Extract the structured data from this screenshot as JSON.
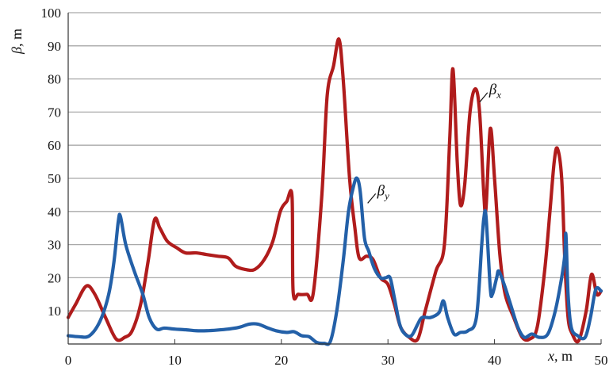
{
  "chart_data": {
    "type": "line",
    "title": "",
    "xlabel": {
      "symbol": "x",
      "unit": ", m"
    },
    "ylabel": {
      "symbol": "β",
      "unit": ", m"
    },
    "xlim": [
      0,
      50
    ],
    "ylim": [
      0,
      100
    ],
    "x_ticks": [
      0,
      10,
      20,
      30,
      40,
      50
    ],
    "y_ticks": [
      10,
      20,
      30,
      40,
      50,
      60,
      70,
      80,
      90,
      100
    ],
    "grid": "horizontal",
    "legend": "none",
    "series": [
      {
        "name": "βx",
        "label_main": "β",
        "label_sub": "x",
        "label_anchor": [
          38.6,
          73
        ],
        "color": "#b01c1c",
        "points": [
          [
            0,
            8
          ],
          [
            0.7,
            12
          ],
          [
            1.7,
            17.5
          ],
          [
            2.5,
            15
          ],
          [
            3.5,
            8
          ],
          [
            4.5,
            1.5
          ],
          [
            5.3,
            2
          ],
          [
            6,
            4
          ],
          [
            6.8,
            12
          ],
          [
            7.5,
            25
          ],
          [
            8.1,
            37.5
          ],
          [
            8.6,
            35
          ],
          [
            9.3,
            31
          ],
          [
            10.2,
            29
          ],
          [
            11,
            27.5
          ],
          [
            12,
            27.5
          ],
          [
            13,
            27
          ],
          [
            14,
            26.5
          ],
          [
            15,
            26
          ],
          [
            15.7,
            23.5
          ],
          [
            16.6,
            22.5
          ],
          [
            17.5,
            22.5
          ],
          [
            18.4,
            25.5
          ],
          [
            19.2,
            31
          ],
          [
            19.9,
            40
          ],
          [
            20.5,
            43
          ],
          [
            21,
            44.5
          ],
          [
            21.1,
            16
          ],
          [
            21.6,
            15
          ],
          [
            22.4,
            15
          ],
          [
            23,
            15.5
          ],
          [
            23.8,
            45
          ],
          [
            24.3,
            75
          ],
          [
            24.9,
            84
          ],
          [
            25.4,
            92
          ],
          [
            25.8,
            80
          ],
          [
            26.4,
            50
          ],
          [
            26.9,
            35
          ],
          [
            27.3,
            26
          ],
          [
            28,
            26.5
          ],
          [
            28.6,
            25.5
          ],
          [
            29.3,
            20
          ],
          [
            30,
            18
          ],
          [
            30.6,
            12
          ],
          [
            31.2,
            5
          ],
          [
            32,
            2
          ],
          [
            32.8,
            1.5
          ],
          [
            33.5,
            10
          ],
          [
            34.5,
            22
          ],
          [
            35.3,
            30
          ],
          [
            35.8,
            62
          ],
          [
            36.1,
            83
          ],
          [
            36.5,
            55
          ],
          [
            36.8,
            42
          ],
          [
            37.2,
            48
          ],
          [
            37.7,
            70
          ],
          [
            38.2,
            77
          ],
          [
            38.6,
            70
          ],
          [
            39,
            45
          ],
          [
            39.2,
            41
          ],
          [
            39.6,
            65
          ],
          [
            40,
            50
          ],
          [
            40.5,
            27
          ],
          [
            41,
            15
          ],
          [
            41.8,
            8
          ],
          [
            42.6,
            2
          ],
          [
            43.3,
            1.5
          ],
          [
            44,
            5
          ],
          [
            44.7,
            22
          ],
          [
            45.2,
            40
          ],
          [
            45.6,
            55
          ],
          [
            45.9,
            59
          ],
          [
            46.3,
            50
          ],
          [
            46.6,
            25
          ],
          [
            46.9,
            8
          ],
          [
            47.3,
            3
          ],
          [
            47.9,
            1
          ],
          [
            48.6,
            10
          ],
          [
            49.1,
            21
          ],
          [
            49.6,
            15
          ],
          [
            50,
            16
          ]
        ]
      },
      {
        "name": "βy",
        "label_main": "β",
        "label_sub": "y",
        "label_anchor": [
          28.1,
          42.5
        ],
        "color": "#2360a8",
        "points": [
          [
            0,
            2.5
          ],
          [
            1,
            2.2
          ],
          [
            2,
            2.5
          ],
          [
            3,
            7
          ],
          [
            3.8,
            15
          ],
          [
            4.3,
            25
          ],
          [
            4.7,
            37
          ],
          [
            4.9,
            38.5
          ],
          [
            5.4,
            30
          ],
          [
            6.2,
            22
          ],
          [
            7,
            15
          ],
          [
            7.6,
            8
          ],
          [
            8.3,
            4.5
          ],
          [
            9,
            4.8
          ],
          [
            10,
            4.5
          ],
          [
            11,
            4.3
          ],
          [
            12,
            4
          ],
          [
            13,
            4
          ],
          [
            14,
            4.2
          ],
          [
            15,
            4.5
          ],
          [
            16,
            5
          ],
          [
            17,
            6
          ],
          [
            17.8,
            6
          ],
          [
            18.6,
            5
          ],
          [
            19.5,
            4
          ],
          [
            20.5,
            3.5
          ],
          [
            21.2,
            3.7
          ],
          [
            21.9,
            2.5
          ],
          [
            22.6,
            2.2
          ],
          [
            23.3,
            0.5
          ],
          [
            24,
            0.2
          ],
          [
            24.6,
            0.8
          ],
          [
            25.2,
            10
          ],
          [
            25.8,
            25
          ],
          [
            26.3,
            40
          ],
          [
            26.8,
            48
          ],
          [
            27.1,
            50
          ],
          [
            27.4,
            46
          ],
          [
            27.8,
            32
          ],
          [
            28.2,
            28
          ],
          [
            28.7,
            23
          ],
          [
            29.3,
            20
          ],
          [
            29.8,
            20
          ],
          [
            30.2,
            20
          ],
          [
            30.6,
            14
          ],
          [
            31.1,
            6
          ],
          [
            31.6,
            3
          ],
          [
            32.2,
            2.5
          ],
          [
            32.8,
            6
          ],
          [
            33.2,
            8
          ],
          [
            34,
            8
          ],
          [
            34.8,
            9.5
          ],
          [
            35.2,
            13
          ],
          [
            35.6,
            8
          ],
          [
            36.2,
            3
          ],
          [
            36.8,
            3.5
          ],
          [
            37.5,
            4
          ],
          [
            38.3,
            8
          ],
          [
            38.8,
            30
          ],
          [
            39,
            38
          ],
          [
            39.2,
            38.5
          ],
          [
            39.6,
            17
          ],
          [
            39.8,
            15
          ],
          [
            40.2,
            20
          ],
          [
            40.4,
            22
          ],
          [
            40.9,
            18
          ],
          [
            41.5,
            12
          ],
          [
            42.2,
            5
          ],
          [
            42.8,
            2
          ],
          [
            43.5,
            3
          ],
          [
            44.2,
            2
          ],
          [
            45,
            3
          ],
          [
            45.7,
            10
          ],
          [
            46.3,
            20
          ],
          [
            46.6,
            27
          ],
          [
            46.7,
            33
          ],
          [
            46.9,
            15
          ],
          [
            47.2,
            5
          ],
          [
            47.8,
            2.5
          ],
          [
            48.5,
            2
          ],
          [
            49,
            8
          ],
          [
            49.5,
            16.5
          ],
          [
            50,
            16
          ]
        ]
      }
    ]
  }
}
